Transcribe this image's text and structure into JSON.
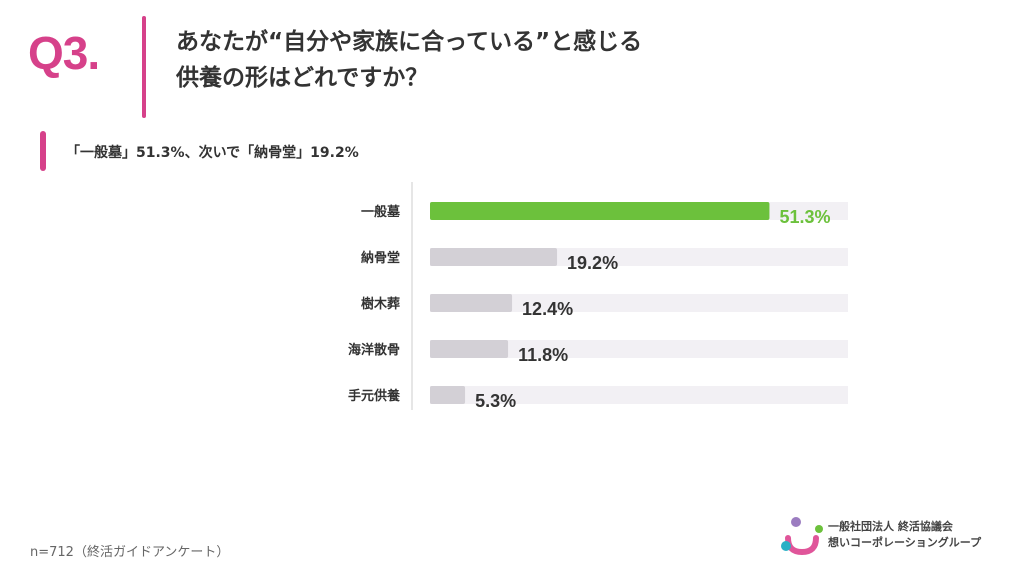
{
  "header": {
    "q_number": "Q3.",
    "question_line1": "あなたが“自分や家族に合っている”と感じる",
    "question_line2": "供養の形はどれですか？"
  },
  "summary": "「一般墓」51.3%、次いで「納骨堂」19.2%",
  "colors": {
    "accent": "#d6418a",
    "highlight_bar": "#6cc13c",
    "bar": "#d3d0d6",
    "track": "#f2f0f4",
    "axis": "#cccccc",
    "label": "#333333"
  },
  "chart_data": {
    "type": "bar",
    "orientation": "horizontal",
    "categories": [
      "一般墓",
      "納骨堂",
      "樹木葬",
      "海洋散骨",
      "手元供養"
    ],
    "values": [
      51.3,
      19.2,
      12.4,
      11.8,
      5.3
    ],
    "value_labels": [
      "51.3%",
      "19.2%",
      "12.4%",
      "11.8%",
      "5.3%"
    ],
    "highlight_index": 0,
    "xlim": [
      0,
      100
    ],
    "unit": "%",
    "title": "",
    "xlabel": "",
    "ylabel": "",
    "grid": false,
    "legend": "none"
  },
  "footnote": "n=712（終活ガイドアンケート）",
  "logo": {
    "line1": "一般社団法人 終活協議会",
    "line2": "想いコーポレーショングループ"
  }
}
